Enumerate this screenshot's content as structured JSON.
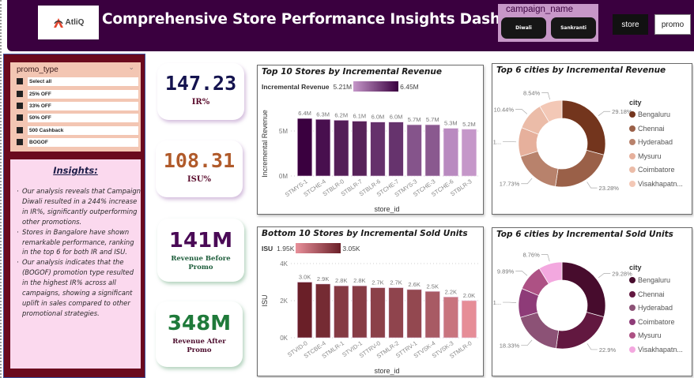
{
  "header": {
    "logo_text": "AtliQ",
    "title": "Comprehensive Store Performance Insights Dashboard",
    "campaign_slicer": {
      "label": "campaign_name",
      "options": [
        "Diwali",
        "Sankranti"
      ]
    },
    "nav_buttons": [
      "store",
      "promo"
    ]
  },
  "promo_slicer": {
    "label": "promo_type",
    "items": [
      "Select all",
      "25% OFF",
      "33% OFF",
      "50% OFF",
      "500 Cashback",
      "BOGOF"
    ]
  },
  "insights": {
    "title": "Insights:",
    "points": [
      "Our analysis reveals that Campaign Diwali resulted in a 244% increase in IR%, significantly outperforming other promotions.",
      "Stores in Bangalore have shown remarkable performance, ranking in the top 6 for both IR and  ISU.",
      "Our analysis indicates that the (BOGOF) promotion type resulted in the highest IR% across all campaigns, showing a significant uplift in sales compared to other promotional strategies."
    ]
  },
  "kpis": [
    {
      "value": "147.23",
      "label": "IR%"
    },
    {
      "value": "108.31",
      "label": "ISU%"
    },
    {
      "value": "141M",
      "label": "Revenue Before Promo"
    },
    {
      "value": "348M",
      "label": "Revenue After Promo"
    }
  ],
  "chart_data": [
    {
      "type": "bar",
      "title": "Top 10 Stores by Incremental Revenue",
      "legend": {
        "name": "Incremental Revenue",
        "min": "5.21M",
        "max": "6.45M",
        "color_min": "#c597c9",
        "color_max": "#3a003f"
      },
      "xlabel": "store_id",
      "ylabel": "Incremental Revenue",
      "categories": [
        "STMYS-1",
        "STCHE-4",
        "STBLR-0",
        "STBLR-7",
        "STBLR-6",
        "STCHE-7",
        "STMYS-3",
        "STCHE-3",
        "STCHE-6",
        "STBLR-3"
      ],
      "values": [
        6.4,
        6.3,
        6.2,
        6.1,
        6.0,
        6.0,
        5.7,
        5.7,
        5.3,
        5.2
      ],
      "data_labels": [
        "6.4M",
        "6.3M",
        "6.2M",
        "6.1M",
        "6.0M",
        "6.0M",
        "5.7M",
        "5.7M",
        "5.3M",
        "5.2M"
      ],
      "colors": [
        "#3a003f",
        "#480f4e",
        "#541e58",
        "#572259",
        "#65306b",
        "#66336d",
        "#85548b",
        "#8a598f",
        "#b98ac0",
        "#c597c9"
      ],
      "yticks": [
        "0M",
        "5M"
      ],
      "ytick_values": [
        0,
        5
      ],
      "ylim": [
        0,
        7.2
      ],
      "grid": true
    },
    {
      "type": "bar",
      "title": "Bottom 10 Stores by Incremental Sold Units",
      "legend": {
        "name": "ISU",
        "min": "1.95K",
        "max": "3.05K",
        "color_min": "#e8909a",
        "color_max": "#6a1f28"
      },
      "xlabel": "store_id",
      "ylabel": "ISU",
      "categories": [
        "STVID-0",
        "STCBE-4",
        "STMLR-1",
        "STVID-1",
        "STTRV-0",
        "STMLR-2",
        "STTRV-1",
        "STVSK-4",
        "STVSK-3",
        "STMLR-0"
      ],
      "values": [
        3.0,
        2.9,
        2.8,
        2.8,
        2.7,
        2.7,
        2.6,
        2.5,
        2.2,
        2.0
      ],
      "data_labels": [
        "3.0K",
        "2.9K",
        "2.8K",
        "2.8K",
        "2.7K",
        "2.7K",
        "2.6K",
        "2.5K",
        "2.2K",
        "2.0K"
      ],
      "colors": [
        "#6a1f28",
        "#752b33",
        "#853a43",
        "#873c45",
        "#8b4049",
        "#8f444d",
        "#934850",
        "#a85a64",
        "#c8747e",
        "#e68d97"
      ],
      "yticks": [
        "0K",
        "2K",
        "4K"
      ],
      "ytick_values": [
        0,
        2,
        4
      ],
      "ylim": [
        0,
        4
      ],
      "grid": true
    },
    {
      "type": "pie",
      "title": "Top 6 cities by Incremental Revenue",
      "legend_title": "city",
      "labels": [
        "Bengaluru",
        "Chennai",
        "Hyderabad",
        "Mysuru",
        "Coimbatore",
        "Visakhapatn..."
      ],
      "values": [
        29.18,
        23.28,
        17.73,
        10.83,
        10.44,
        8.54
      ],
      "data_labels": [
        "29.18%",
        "23.28%",
        "17.73%",
        "1...",
        "10.44%",
        "8.54%"
      ],
      "colors": [
        "#73351d",
        "#9a6048",
        "#b8826c",
        "#e6b09c",
        "#ebbca8",
        "#f3c8b6"
      ]
    },
    {
      "type": "pie",
      "title": "Top 6 cities by Incremental Sold Units",
      "legend_title": "city",
      "labels": [
        "Bengaluru",
        "Chennai",
        "Hyderabad",
        "Coimbatore",
        "Mysuru",
        "Visakhapatn..."
      ],
      "values": [
        29.28,
        22.9,
        18.33,
        10.84,
        9.89,
        8.76
      ],
      "data_labels": [
        "29.28%",
        "22.9%",
        "18.33%",
        "1...",
        "9.89%",
        "8.76%"
      ],
      "colors": [
        "#470c2d",
        "#621840",
        "#8c5276",
        "#8e3b78",
        "#ad5184",
        "#f3a8df"
      ]
    }
  ]
}
